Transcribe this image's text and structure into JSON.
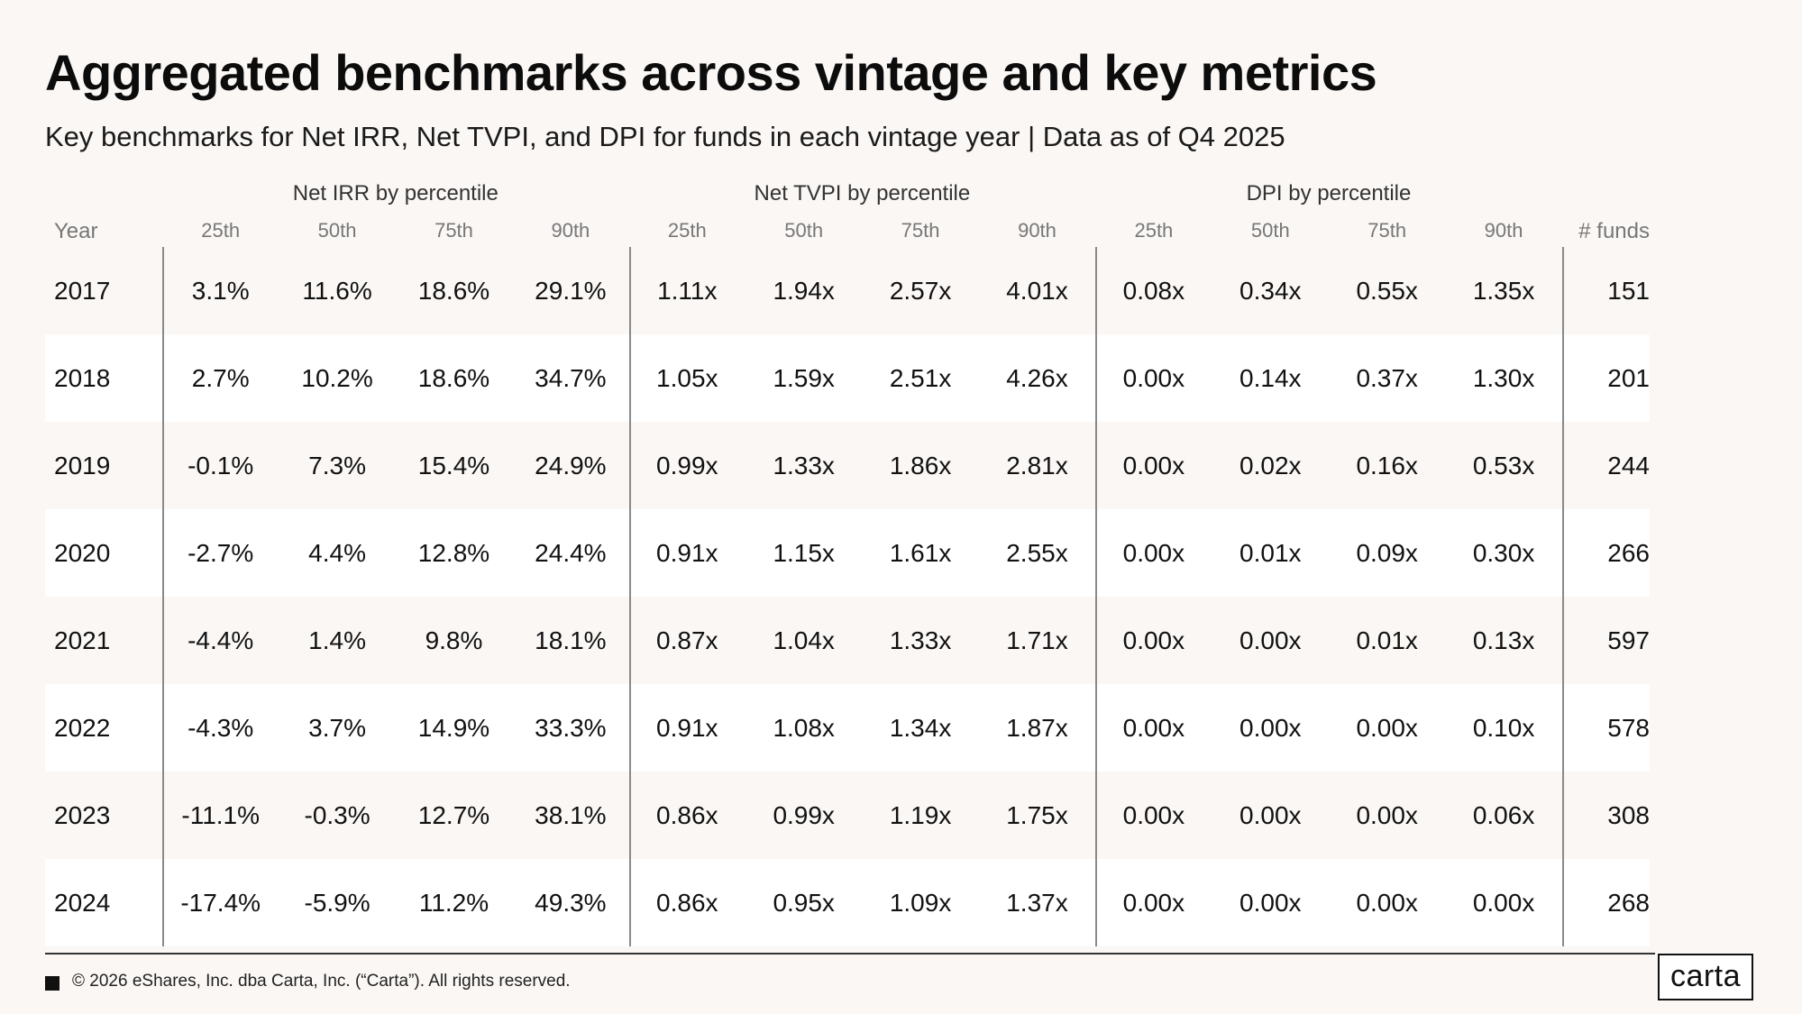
{
  "title": "Aggregated benchmarks across vintage and key metrics",
  "subtitle": "Key benchmarks for Net IRR, Net TVPI, and DPI for funds in each vintage year | Data as of Q4 2025",
  "footer": "© 2026 eShares, Inc. dba Carta, Inc. (“Carta”). All rights reserved.",
  "logo": "carta",
  "chart_data": {
    "type": "table",
    "group_headers": [
      "Net IRR by percentile",
      "Net TVPI by percentile",
      "DPI by percentile"
    ],
    "columns": [
      "Year",
      "25th",
      "50th",
      "75th",
      "90th",
      "25th",
      "50th",
      "75th",
      "90th",
      "25th",
      "50th",
      "75th",
      "90th",
      "# funds"
    ],
    "rows": [
      [
        "2017",
        "3.1%",
        "11.6%",
        "18.6%",
        "29.1%",
        "1.11x",
        "1.94x",
        "2.57x",
        "4.01x",
        "0.08x",
        "0.34x",
        "0.55x",
        "1.35x",
        "151"
      ],
      [
        "2018",
        "2.7%",
        "10.2%",
        "18.6%",
        "34.7%",
        "1.05x",
        "1.59x",
        "2.51x",
        "4.26x",
        "0.00x",
        "0.14x",
        "0.37x",
        "1.30x",
        "201"
      ],
      [
        "2019",
        "-0.1%",
        "7.3%",
        "15.4%",
        "24.9%",
        "0.99x",
        "1.33x",
        "1.86x",
        "2.81x",
        "0.00x",
        "0.02x",
        "0.16x",
        "0.53x",
        "244"
      ],
      [
        "2020",
        "-2.7%",
        "4.4%",
        "12.8%",
        "24.4%",
        "0.91x",
        "1.15x",
        "1.61x",
        "2.55x",
        "0.00x",
        "0.01x",
        "0.09x",
        "0.30x",
        "266"
      ],
      [
        "2021",
        "-4.4%",
        "1.4%",
        "9.8%",
        "18.1%",
        "0.87x",
        "1.04x",
        "1.33x",
        "1.71x",
        "0.00x",
        "0.00x",
        "0.01x",
        "0.13x",
        "597"
      ],
      [
        "2022",
        "-4.3%",
        "3.7%",
        "14.9%",
        "33.3%",
        "0.91x",
        "1.08x",
        "1.34x",
        "1.87x",
        "0.00x",
        "0.00x",
        "0.00x",
        "0.10x",
        "578"
      ],
      [
        "2023",
        "-11.1%",
        "-0.3%",
        "12.7%",
        "38.1%",
        "0.86x",
        "0.99x",
        "1.19x",
        "1.75x",
        "0.00x",
        "0.00x",
        "0.00x",
        "0.06x",
        "308"
      ],
      [
        "2024",
        "-17.4%",
        "-5.9%",
        "11.2%",
        "49.3%",
        "0.86x",
        "0.95x",
        "1.09x",
        "1.37x",
        "0.00x",
        "0.00x",
        "0.00x",
        "0.00x",
        "268"
      ]
    ]
  }
}
